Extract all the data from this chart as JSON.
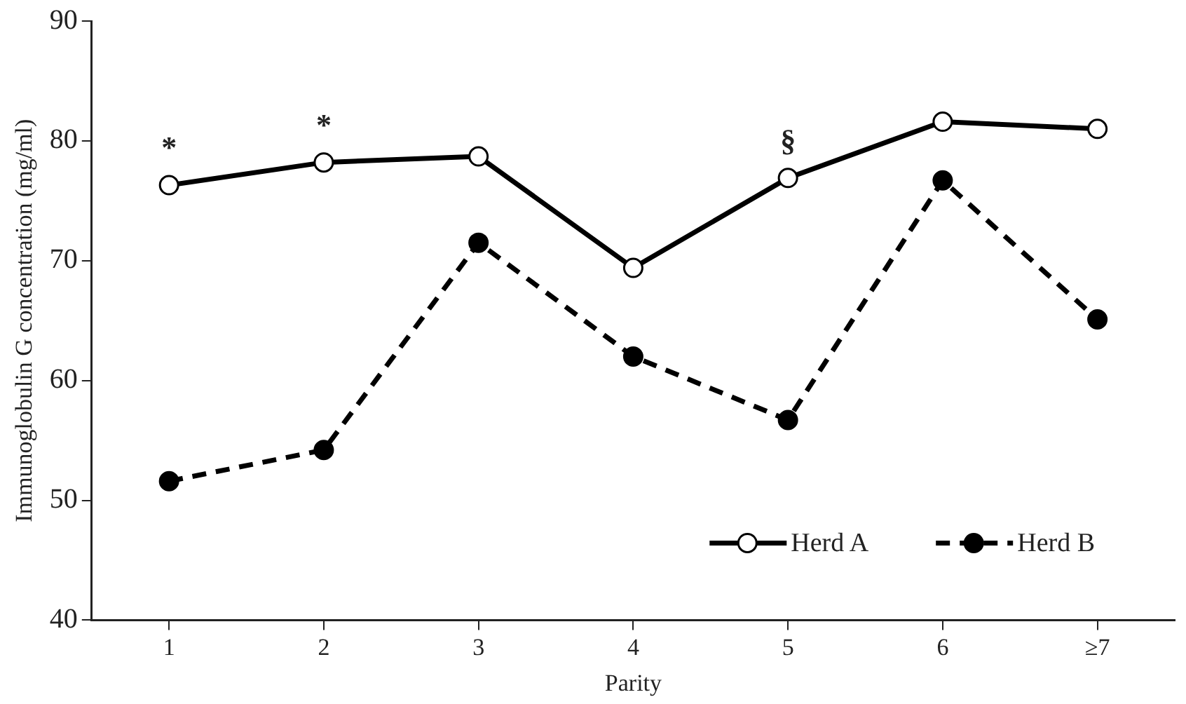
{
  "chart_data": {
    "type": "line",
    "xlabel": "Parity",
    "ylabel": "Immunoglobulin G concentration (mg/ml)",
    "categories": [
      "1",
      "2",
      "3",
      "4",
      "5",
      "6",
      "≥7"
    ],
    "series": [
      {
        "name": "Herd A",
        "color": "#000000",
        "values": [
          76.3,
          78.2,
          78.7,
          69.4,
          76.9,
          81.6,
          81.0
        ],
        "marker": "circle",
        "line_style": "solid"
      },
      {
        "name": "Herd B",
        "color": "#000000",
        "values": [
          51.6,
          54.2,
          71.5,
          62.0,
          56.7,
          76.7,
          65.1
        ],
        "marker": "circle",
        "line_style": "dashed"
      }
    ],
    "ylim": [
      40,
      90
    ],
    "yticks": [
      40,
      50,
      60,
      70,
      80,
      90
    ],
    "grid": false,
    "legend": "bottom right",
    "annotations": [
      {
        "text": "*",
        "x": "1",
        "y": 76.3
      },
      {
        "text": "*",
        "x": "2",
        "y": 78.2
      },
      {
        "text": "§",
        "x": "5",
        "y": 76.9
      }
    ]
  }
}
